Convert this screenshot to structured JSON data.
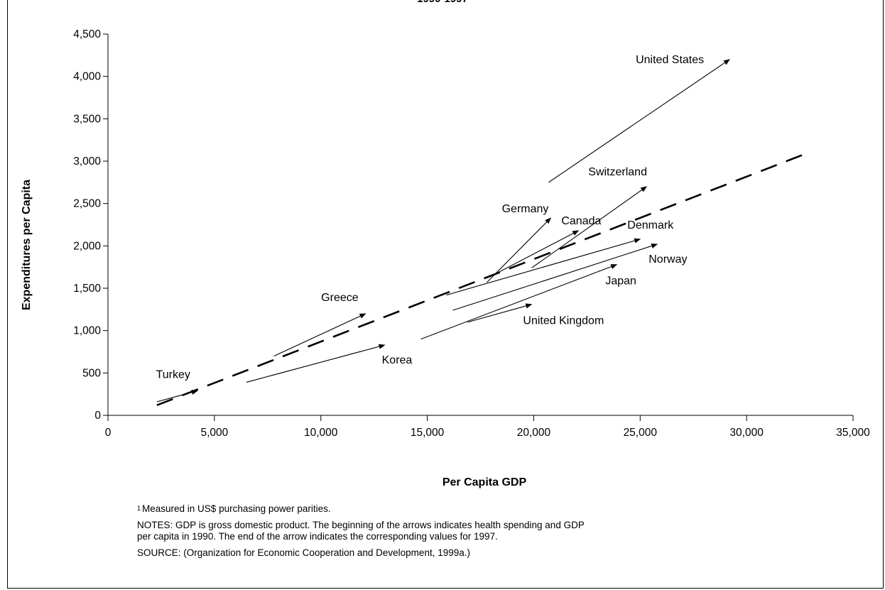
{
  "chart_data": {
    "type": "scatter",
    "title_partial": "1990-1997",
    "xlabel": "Per Capita GDP",
    "ylabel": "Expenditures per Capita",
    "xlim": [
      0,
      35000
    ],
    "ylim": [
      0,
      4500
    ],
    "x_ticks": [
      0,
      5000,
      10000,
      15000,
      20000,
      25000,
      30000,
      35000
    ],
    "y_ticks": [
      0,
      500,
      1000,
      1500,
      2000,
      2500,
      3000,
      3500,
      4000,
      4500
    ],
    "x_tick_labels": [
      "0",
      "5,000",
      "10,000",
      "15,000",
      "20,000",
      "25,000",
      "30,000",
      "35,000"
    ],
    "y_tick_labels": [
      "0",
      "500",
      "1,000",
      "1,500",
      "2,000",
      "2,500",
      "3,000",
      "3,500",
      "4,000",
      "4,500"
    ],
    "grid": false,
    "trend_line": {
      "style": "dashed",
      "from": [
        2300,
        120
      ],
      "to": [
        32800,
        3090
      ]
    },
    "series": [
      {
        "name": "Turkey",
        "start": [
          2300,
          160
        ],
        "end": [
          4200,
          290
        ]
      },
      {
        "name": "Greece",
        "start": [
          7800,
          700
        ],
        "end": [
          12100,
          1200
        ]
      },
      {
        "name": "Korea",
        "start": [
          6500,
          390
        ],
        "end": [
          13000,
          830
        ]
      },
      {
        "name": "United Kingdom",
        "start": [
          16900,
          1100
        ],
        "end": [
          19900,
          1310
        ]
      },
      {
        "name": "Japan",
        "start": [
          14700,
          900
        ],
        "end": [
          23900,
          1780
        ]
      },
      {
        "name": "Norway",
        "start": [
          16200,
          1240
        ],
        "end": [
          25800,
          2020
        ]
      },
      {
        "name": "Denmark",
        "start": [
          15900,
          1420
        ],
        "end": [
          25000,
          2080
        ]
      },
      {
        "name": "Canada",
        "start": [
          17900,
          1630
        ],
        "end": [
          22100,
          2180
        ]
      },
      {
        "name": "Germany",
        "start": [
          17800,
          1570
        ],
        "end": [
          20800,
          2330
        ]
      },
      {
        "name": "Switzerland",
        "start": [
          19900,
          1740
        ],
        "end": [
          25300,
          2700
        ]
      },
      {
        "name": "United States",
        "start": [
          20700,
          2750
        ],
        "end": [
          29200,
          4200
        ]
      }
    ]
  },
  "notes": {
    "footnote_marker": "1",
    "footnote": "Measured in US$ purchasing power parities.",
    "notes_line1": "NOTES: GDP is gross domestic product. The beginning of the arrows indicates health spending and GDP",
    "notes_line2": "per capita in 1990.  The end of the arrow indicates the corresponding values for 1997.",
    "source": "SOURCE: (Organization for Economic Cooperation and Development, 1999a.)"
  }
}
